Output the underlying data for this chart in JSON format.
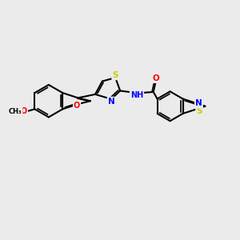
{
  "bg_color": "#ebebeb",
  "bond_color": "#000000",
  "atom_colors": {
    "S": "#cccc00",
    "O": "#ff0000",
    "N": "#0000ff",
    "H": "#000000",
    "C": "#000000"
  }
}
